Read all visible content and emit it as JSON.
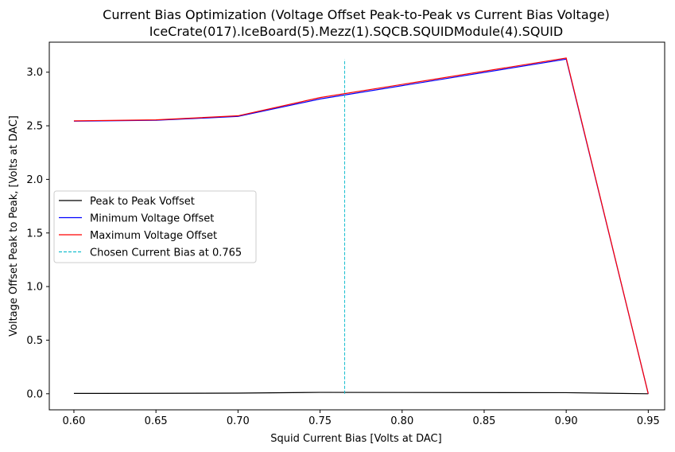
{
  "chart_data": {
    "type": "line",
    "title": "Current Bias Optimization (Voltage Offset Peak-to-Peak vs Current Bias Voltage)",
    "subtitle": "IceCrate(017).IceBoard(5).Mezz(1).SQCB.SQUIDModule(4).SQUID",
    "xlabel": "Squid Current Bias [Volts at DAC]",
    "ylabel": "Voltage Offset Peak to Peak, [Volts at DAC]",
    "xlim": [
      0.585,
      0.96
    ],
    "ylim": [
      -0.15,
      3.28
    ],
    "x_ticks": [
      0.6,
      0.65,
      0.7,
      0.75,
      0.8,
      0.85,
      0.9,
      0.95
    ],
    "x_tick_labels": [
      "0.60",
      "0.65",
      "0.70",
      "0.75",
      "0.80",
      "0.85",
      "0.90",
      "0.95"
    ],
    "y_ticks": [
      0.0,
      0.5,
      1.0,
      1.5,
      2.0,
      2.5,
      3.0
    ],
    "y_tick_labels": [
      "0.0",
      "0.5",
      "1.0",
      "1.5",
      "2.0",
      "2.5",
      "3.0"
    ],
    "grid": false,
    "legend_position": "center-left",
    "series": [
      {
        "name": "Peak to Peak Voffset",
        "color": "#000000",
        "style": "solid",
        "x": [
          0.6,
          0.65,
          0.7,
          0.75,
          0.9,
          0.95
        ],
        "y": [
          0.003,
          0.004,
          0.006,
          0.013,
          0.01,
          0.0
        ]
      },
      {
        "name": "Minimum Voltage Offset",
        "color": "#0000ff",
        "style": "solid",
        "x": [
          0.6,
          0.65,
          0.7,
          0.75,
          0.9,
          0.95
        ],
        "y": [
          2.543,
          2.551,
          2.587,
          2.75,
          3.122,
          0.0
        ]
      },
      {
        "name": "Maximum Voltage Offset",
        "color": "#ff0000",
        "style": "solid",
        "x": [
          0.6,
          0.65,
          0.7,
          0.75,
          0.9,
          0.95
        ],
        "y": [
          2.546,
          2.555,
          2.593,
          2.763,
          3.132,
          0.0
        ]
      },
      {
        "name": "Chosen Current Bias at 0.765",
        "color": "#17becf",
        "style": "dashed",
        "x": [
          0.765,
          0.765
        ],
        "y": [
          0.0,
          3.12
        ]
      }
    ]
  }
}
